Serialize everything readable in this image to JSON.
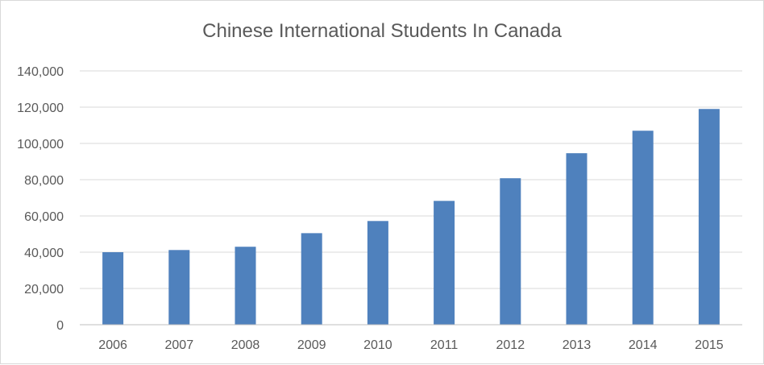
{
  "chart_data": {
    "type": "bar",
    "title": "Chinese International Students In Canada",
    "xlabel": "",
    "ylabel": "",
    "categories": [
      "2006",
      "2007",
      "2008",
      "2009",
      "2010",
      "2011",
      "2012",
      "2013",
      "2014",
      "2015"
    ],
    "values": [
      40000,
      41200,
      43000,
      50500,
      57200,
      68300,
      80800,
      94600,
      107000,
      119000
    ],
    "ylim": [
      0,
      140000
    ],
    "yticks": [
      0,
      20000,
      40000,
      60000,
      80000,
      100000,
      120000,
      140000
    ],
    "ytick_labels": [
      "0",
      "20,000",
      "40,000",
      "60,000",
      "80,000",
      "100,000",
      "120,000",
      "140,000"
    ],
    "grid": true,
    "legend": "none",
    "colors": {
      "bar": "#4f81bd",
      "grid": "#d9d9d9",
      "axis": "#bfbfbf",
      "text": "#595959"
    }
  }
}
